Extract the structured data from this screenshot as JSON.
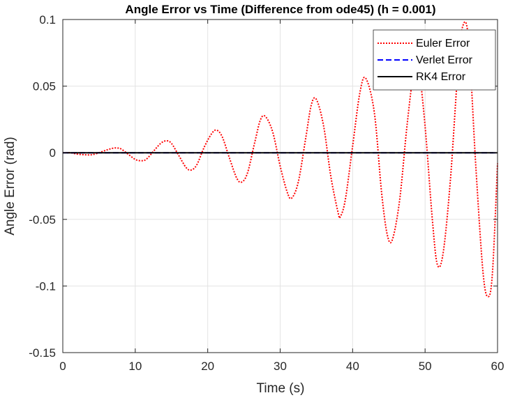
{
  "chart_data": {
    "type": "line",
    "title": "Angle Error vs Time (Difference from ode45) (h = 0.001)",
    "xlabel": "Time (s)",
    "ylabel": "Angle Error (rad)",
    "xlim": [
      0,
      60
    ],
    "ylim": [
      -0.15,
      0.1
    ],
    "xticks": [
      0,
      10,
      20,
      30,
      40,
      50,
      60
    ],
    "xtick_labels": [
      "0",
      "10",
      "20",
      "30",
      "40",
      "50",
      "60"
    ],
    "yticks": [
      -0.15,
      -0.1,
      -0.05,
      0,
      0.05,
      0.1
    ],
    "ytick_labels": [
      "-0.15",
      "-0.1",
      "-0.05",
      "0",
      "0.05",
      "0.1"
    ],
    "grid": true,
    "legend_position": "top-right",
    "series": [
      {
        "name": "Euler Error",
        "color": "#ff0000",
        "style": "dotted",
        "x": [
          0,
          1,
          2,
          3,
          4,
          5,
          6,
          7,
          7.5,
          8,
          9,
          10,
          10.8,
          11.5,
          12.5,
          13.5,
          14.3,
          15,
          16,
          17,
          17.7,
          18.5,
          19.5,
          20.5,
          21.2,
          22,
          23,
          24,
          24.7,
          25.5,
          26.5,
          27.3,
          28,
          29,
          30,
          31,
          31.6,
          32.5,
          33.5,
          34.3,
          35,
          36,
          37,
          38,
          38.3,
          39,
          40,
          41,
          41.8,
          43,
          44,
          44.8,
          45.5,
          46.5,
          47.5,
          48.5,
          49,
          50,
          51,
          51.7,
          52.5,
          53.5,
          54.5,
          55.2,
          56,
          57,
          58,
          58.7,
          59.3,
          60
        ],
        "y": [
          0,
          0,
          -0.001,
          -0.0015,
          -0.0015,
          0,
          0.002,
          0.0035,
          0.0035,
          0.003,
          -0.001,
          -0.005,
          -0.006,
          -0.005,
          0.001,
          0.007,
          0.009,
          0.007,
          -0.002,
          -0.011,
          -0.013,
          -0.009,
          0.004,
          0.014,
          0.017,
          0.012,
          -0.004,
          -0.019,
          -0.022,
          -0.015,
          0.008,
          0.025,
          0.027,
          0.015,
          -0.01,
          -0.03,
          -0.034,
          -0.022,
          0.01,
          0.036,
          0.04,
          0.02,
          -0.018,
          -0.045,
          -0.048,
          -0.035,
          0.005,
          0.045,
          0.056,
          0.03,
          -0.03,
          -0.062,
          -0.065,
          -0.035,
          0.02,
          0.065,
          0.07,
          0.02,
          -0.05,
          -0.084,
          -0.075,
          -0.02,
          0.06,
          0.095,
          0.085,
          -0.01,
          -0.09,
          -0.108,
          -0.09,
          -0.008
        ]
      },
      {
        "name": "Verlet Error",
        "color": "#0000ff",
        "style": "dashed",
        "x": [
          0,
          60
        ],
        "y": [
          0,
          0
        ]
      },
      {
        "name": "RK4 Error",
        "color": "#000000",
        "style": "solid",
        "x": [
          0,
          60
        ],
        "y": [
          0,
          0
        ]
      }
    ]
  }
}
